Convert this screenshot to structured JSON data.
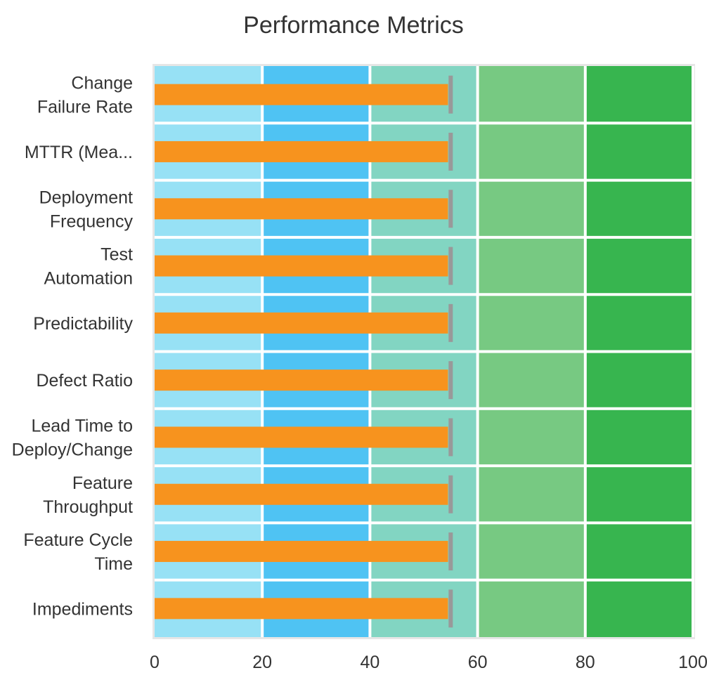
{
  "chart_data": {
    "type": "bullet",
    "title": "Performance Metrics",
    "orientation": "horizontal",
    "categories": [
      "Change Failure Rate",
      "MTTR (Mea...",
      "Deployment Frequency",
      "Test Automation",
      "Predictability",
      "Defect Ratio",
      "Lead Time to Deploy/Change",
      "Feature Throughput",
      "Feature Cycle Time",
      "Impediments"
    ],
    "category_label_lines": [
      [
        "Change",
        "Failure Rate"
      ],
      [
        "MTTR (Mea..."
      ],
      [
        "Deployment",
        "Frequency"
      ],
      [
        "Test",
        "Automation"
      ],
      [
        "Predictability"
      ],
      [
        "Defect Ratio"
      ],
      [
        "Lead Time to",
        "Deploy/Change"
      ],
      [
        "Feature",
        "Throughput"
      ],
      [
        "Feature Cycle",
        "Time"
      ],
      [
        "Impediments"
      ]
    ],
    "series": [
      {
        "role": "measure",
        "values": [
          54.5,
          54.5,
          54.5,
          54.5,
          54.5,
          54.5,
          54.5,
          54.5,
          54.5,
          54.5
        ],
        "color": "#F7931E"
      },
      {
        "role": "target",
        "values": [
          55,
          55,
          55,
          55,
          55,
          55,
          55,
          55,
          55,
          55
        ],
        "color": "#999999"
      }
    ],
    "ranges": [
      {
        "from": 0,
        "to": 20,
        "color": "#97E1F5"
      },
      {
        "from": 20,
        "to": 40,
        "color": "#4FC3F3"
      },
      {
        "from": 40,
        "to": 60,
        "color": "#82D5C2"
      },
      {
        "from": 60,
        "to": 80,
        "color": "#77C982"
      },
      {
        "from": 80,
        "to": 100,
        "color": "#37B54F"
      }
    ],
    "xlim": [
      0,
      100
    ],
    "xticks": [
      0,
      20,
      40,
      60,
      80,
      100
    ],
    "xlabel": "",
    "ylabel": "",
    "grid": true
  }
}
